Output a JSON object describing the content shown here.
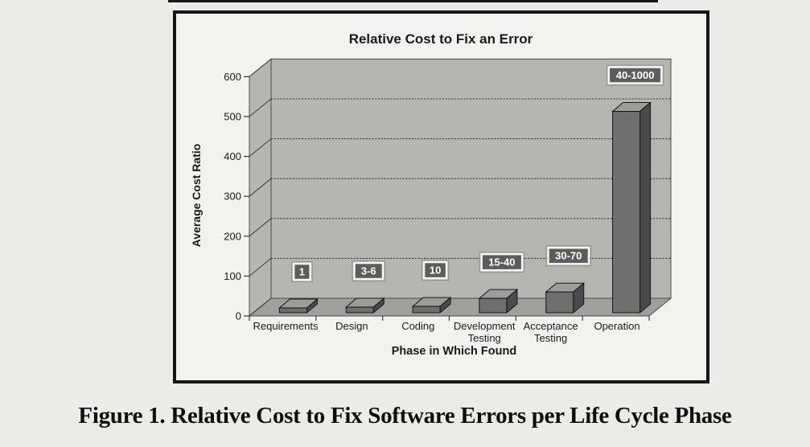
{
  "figure": {
    "caption": "Figure 1. Relative Cost to Fix Software Errors per Life Cycle Phase"
  },
  "chart_data": {
    "type": "bar",
    "style": "3d-column",
    "title": "Relative Cost to Fix an Error",
    "xlabel": "Phase in Which Found",
    "ylabel": "Average Cost Ratio",
    "categories": [
      "Requirements",
      "Design",
      "Coding",
      "Development Testing",
      "Acceptance Testing",
      "Operation"
    ],
    "category_lines": [
      [
        "Requirements"
      ],
      [
        "Design"
      ],
      [
        "Coding"
      ],
      [
        "Development",
        "Testing"
      ],
      [
        "Acceptance",
        "Testing"
      ],
      [
        "Operation"
      ]
    ],
    "bar_labels": [
      "1",
      "3-6",
      "10",
      "15-40",
      "30-70",
      "40-1000"
    ],
    "plotted_heights": [
      12,
      14,
      16,
      36,
      52,
      505
    ],
    "ylim": [
      0,
      600
    ],
    "ytick_step": 100,
    "yticks": [
      0,
      100,
      200,
      300,
      400,
      500,
      600
    ],
    "grid": true,
    "legend": false,
    "colors": {
      "wall": "#b5b6b1",
      "floor": "#9fa09b",
      "bar_front": "#6f6f6f",
      "bar_side": "#4a4a4a",
      "bar_top": "#9c9c9c",
      "bar_outline": "#161616",
      "label_bg": "#5c5c5c",
      "label_text": "#ffffff",
      "label_border": "#f5f5f5",
      "label_outer": "#8f8f8f",
      "gridline": "#3c3c3c",
      "edge": "#4a4a4a",
      "text": "#1a1a1a",
      "frame_bg": "#f2f3ef",
      "frame_border": "#161616",
      "page_bg": "#eaece7"
    }
  }
}
